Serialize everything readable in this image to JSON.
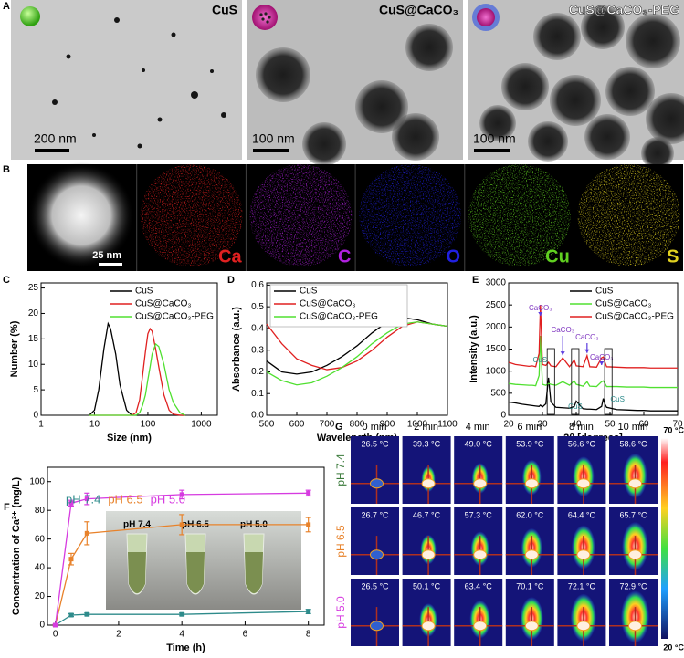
{
  "panel_labels": [
    "A",
    "B",
    "C",
    "D",
    "E",
    "F",
    "G"
  ],
  "panel_a": {
    "images": [
      {
        "title": "CuS",
        "scale_bar": "200 nm"
      },
      {
        "title": "CuS@CaCO₃",
        "scale_bar": "100 nm"
      },
      {
        "title": "CuS@CaCO₃-PEG",
        "scale_bar": "100 nm"
      }
    ]
  },
  "panel_b": {
    "scale_bar": "25 nm",
    "elements": [
      {
        "label": "Ca",
        "color": "#e02020"
      },
      {
        "label": "C",
        "color": "#b020e0"
      },
      {
        "label": "O",
        "color": "#2020e0"
      },
      {
        "label": "Cu",
        "color": "#60d020"
      },
      {
        "label": "S",
        "color": "#e0d020"
      }
    ]
  },
  "chart_data": [
    {
      "type": "line",
      "xscale": "log",
      "x_label": "Size (nm)",
      "y_label": "Number (%)",
      "x": [
        8,
        10,
        12,
        15,
        18,
        20,
        25,
        30,
        40,
        50,
        60,
        70,
        80,
        90,
        100,
        110,
        120,
        140,
        160,
        200,
        250,
        300,
        400,
        500
      ],
      "series": [
        {
          "name": "CuS",
          "color": "#000000",
          "values": [
            0,
            1,
            5,
            13,
            18,
            17,
            12,
            6,
            1,
            0,
            0,
            0,
            0,
            0,
            0,
            0,
            0,
            0,
            0,
            0,
            0,
            0,
            0,
            0
          ]
        },
        {
          "name": "CuS@CaCO₃",
          "color": "#e02020",
          "values": [
            0,
            0,
            0,
            0,
            0,
            0,
            0,
            0,
            0,
            0,
            0.5,
            3,
            8,
            12.5,
            16,
            17,
            16.5,
            13,
            9.5,
            4,
            1,
            0.2,
            0,
            0
          ]
        },
        {
          "name": "CuS@CaCO₃-PEG",
          "color": "#50e030",
          "values": [
            0,
            0,
            0,
            0,
            0,
            0,
            0,
            0,
            0,
            0,
            0,
            0.5,
            2,
            4,
            7,
            9.5,
            12,
            14,
            13.5,
            10,
            5,
            2.5,
            0.5,
            0
          ]
        }
      ],
      "xlim": [
        1,
        2000
      ],
      "xticks": [
        1,
        10,
        100,
        1000
      ],
      "ylim": [
        0,
        26
      ],
      "yticks": [
        0,
        5,
        10,
        15,
        20,
        25
      ],
      "legend": "upper right"
    },
    {
      "type": "line",
      "x_label": "Wavelength (nm)",
      "y_label": "Absorbance (a.u.)",
      "x": [
        500,
        550,
        600,
        650,
        700,
        750,
        800,
        850,
        900,
        950,
        1000,
        1050,
        1100
      ],
      "series": [
        {
          "name": "CuS",
          "color": "#000000",
          "values": [
            0.25,
            0.2,
            0.19,
            0.2,
            0.23,
            0.27,
            0.32,
            0.38,
            0.43,
            0.45,
            0.44,
            0.42,
            0.41
          ]
        },
        {
          "name": "CuS@CaCO₃",
          "color": "#e02020",
          "values": [
            0.42,
            0.33,
            0.26,
            0.23,
            0.21,
            0.22,
            0.25,
            0.3,
            0.36,
            0.41,
            0.43,
            0.42,
            0.41
          ]
        },
        {
          "name": "CuS@CaCO₃-PEG",
          "color": "#50e030",
          "values": [
            0.2,
            0.16,
            0.14,
            0.15,
            0.18,
            0.22,
            0.27,
            0.33,
            0.38,
            0.42,
            0.43,
            0.42,
            0.41
          ]
        }
      ],
      "xlim": [
        500,
        1100
      ],
      "xticks": [
        500,
        600,
        700,
        800,
        900,
        1000,
        1100
      ],
      "ylim": [
        0,
        0.61
      ],
      "yticks": [
        {
          "value": 0,
          "label": "0.0"
        },
        0.1,
        0.2,
        0.3,
        0.4,
        0.5,
        0.6
      ],
      "legend": "upper left"
    },
    {
      "type": "line",
      "x_label": "2θ [degrees]",
      "y_label": "Intensity (a.u.)",
      "x": [
        20,
        22,
        24,
        26,
        27,
        28,
        29,
        29.4,
        30,
        31,
        31.8,
        32.5,
        34,
        36,
        38,
        39.4,
        40,
        42,
        43.2,
        44,
        46,
        47.5,
        48,
        48.5,
        49,
        52,
        55,
        58,
        60,
        62,
        65,
        68,
        70
      ],
      "series": [
        {
          "name": "CuS",
          "color": "#000000",
          "values": [
            300,
            280,
            250,
            230,
            220,
            210,
            200,
            230,
            190,
            260,
            850,
            300,
            180,
            170,
            160,
            200,
            320,
            150,
            140,
            140,
            130,
            200,
            380,
            250,
            180,
            130,
            120,
            110,
            110,
            100,
            100,
            100,
            100
          ]
        },
        {
          "name": "CuS@CaCO₃",
          "color": "#50e030",
          "values": [
            720,
            700,
            690,
            680,
            680,
            670,
            900,
            1800,
            700,
            680,
            720,
            700,
            680,
            760,
            680,
            780,
            700,
            660,
            760,
            660,
            650,
            760,
            780,
            720,
            650,
            650,
            640,
            640,
            640,
            630,
            630,
            630,
            630
          ]
        },
        {
          "name": "CuS@CaCO₃-PEG",
          "color": "#e02020",
          "values": [
            1200,
            1150,
            1130,
            1110,
            1120,
            1100,
            1400,
            2500,
            1150,
            1130,
            1200,
            1120,
            1100,
            1300,
            1100,
            1250,
            1120,
            1100,
            1350,
            1100,
            1090,
            1300,
            1320,
            1200,
            1100,
            1090,
            1080,
            1080,
            1080,
            1070,
            1070,
            1070,
            1070
          ]
        }
      ],
      "annotations": [
        {
          "text": "CaCO₃",
          "x": 29.4
        },
        {
          "text": "CaCO₃",
          "x": 36
        },
        {
          "text": "CaCO₃",
          "x": 43.2
        },
        {
          "text": "CaCO₃",
          "x": 47.5
        }
      ],
      "phase_marks": [
        {
          "text": "CuS",
          "x": 32.5
        },
        {
          "text": "CuS",
          "x": 39.7
        },
        {
          "text": "CuS",
          "x": 49.5
        }
      ],
      "xlim": [
        20,
        70
      ],
      "xticks": [
        20,
        30,
        40,
        50,
        60,
        70
      ],
      "ylim": [
        0,
        3000
      ],
      "yticks": [
        0,
        500,
        1000,
        1500,
        2000,
        2500,
        3000
      ],
      "legend": "upper right"
    },
    {
      "type": "line",
      "markers": true,
      "x_label": "Time (h)",
      "y_label": "Concentration of Ca²⁺ (mg/L)",
      "x": [
        0,
        0.5,
        1,
        4,
        8
      ],
      "series": [
        {
          "name": "pH 7.4",
          "color": "#2e8b8b",
          "values": [
            0,
            7,
            7.5,
            7.5,
            9.5
          ],
          "errors": [
            0.5,
            1,
            1,
            1,
            1.5
          ]
        },
        {
          "name": "pH 6.5",
          "color": "#e8822a",
          "values": [
            0,
            46,
            64,
            70,
            70
          ],
          "errors": [
            0.5,
            4,
            8,
            7,
            5
          ]
        },
        {
          "name": "pH 5.0",
          "color": "#d63be0",
          "values": [
            0,
            85,
            88,
            91,
            92
          ],
          "errors": [
            0.5,
            2,
            4,
            3,
            2
          ]
        }
      ],
      "inset_labels": [
        "pH 7.4",
        "pH 6.5",
        "pH 5.0"
      ],
      "xlim": [
        -0.25,
        8.5
      ],
      "xticks": [
        0,
        2,
        4,
        6,
        8
      ],
      "ylim": [
        0,
        110
      ],
      "yticks": [
        0,
        20,
        40,
        60,
        80,
        100
      ],
      "legend": "upper left"
    }
  ],
  "panel_g": {
    "times": [
      "0 min",
      "2 min",
      "4 min",
      "6 min",
      "8 min",
      "10 min"
    ],
    "rows": [
      {
        "label": "pH 7.4",
        "color": "#3a7a3a",
        "temperatures": [
          "26.5 °C",
          "39.3 °C",
          "49.0 °C",
          "53.9 °C",
          "56.6 °C",
          "58.6 °C"
        ]
      },
      {
        "label": "pH 6.5",
        "color": "#e8822a",
        "temperatures": [
          "26.7 °C",
          "46.7 °C",
          "57.3 °C",
          "62.0 °C",
          "64.4 °C",
          "65.7 °C"
        ]
      },
      {
        "label": "pH 5.0",
        "color": "#d63be0",
        "temperatures": [
          "26.5 °C",
          "50.1 °C",
          "63.4 °C",
          "70.1 °C",
          "72.1 °C",
          "72.9 °C"
        ]
      }
    ],
    "colorbar": {
      "max": "70 °C",
      "min": "20 °C"
    }
  }
}
